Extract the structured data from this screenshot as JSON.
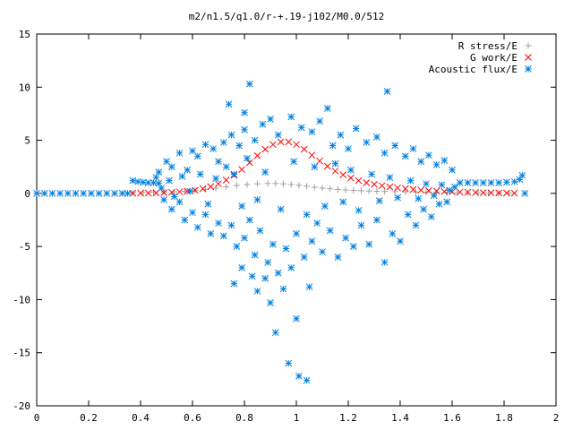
{
  "chart_data": {
    "type": "scatter",
    "title": "m2/n1.5/q1.0/r-+.19-j102/M0.0/512",
    "xlabel": "",
    "ylabel": "",
    "xlim": [
      0,
      2
    ],
    "ylim": [
      -20,
      15
    ],
    "x_ticks": [
      0,
      0.2,
      0.4,
      0.6,
      0.8,
      1,
      1.2,
      1.4,
      1.6,
      1.8,
      2
    ],
    "x_tick_labels": [
      "0",
      "0.2",
      "0.4",
      "0.6",
      "0.8",
      "1",
      "1.2",
      "1.4",
      "1.6",
      "1.8",
      "2"
    ],
    "y_ticks": [
      -20,
      -15,
      -10,
      -5,
      0,
      5,
      10,
      15
    ],
    "y_tick_labels": [
      "-20",
      "-15",
      "-10",
      "-5",
      "0",
      "5",
      "10",
      "15"
    ],
    "grid": false,
    "legend_position": "top-right",
    "series": [
      {
        "name": "R stress/E",
        "marker": "plus",
        "color": "#a0a0a0",
        "points": [
          [
            0.37,
            0.05
          ],
          [
            0.41,
            0.08
          ],
          [
            0.45,
            0.1
          ],
          [
            0.49,
            0.12
          ],
          [
            0.53,
            0.15
          ],
          [
            0.57,
            0.2
          ],
          [
            0.61,
            0.28
          ],
          [
            0.65,
            0.38
          ],
          [
            0.69,
            0.5
          ],
          [
            0.73,
            0.62
          ],
          [
            0.77,
            0.74
          ],
          [
            0.81,
            0.83
          ],
          [
            0.85,
            0.9
          ],
          [
            0.89,
            0.93
          ],
          [
            0.92,
            0.93
          ],
          [
            0.95,
            0.9
          ],
          [
            0.98,
            0.84
          ],
          [
            1.01,
            0.76
          ],
          [
            1.04,
            0.67
          ],
          [
            1.07,
            0.58
          ],
          [
            1.1,
            0.5
          ],
          [
            1.13,
            0.43
          ],
          [
            1.16,
            0.37
          ],
          [
            1.19,
            0.32
          ],
          [
            1.22,
            0.28
          ],
          [
            1.25,
            0.25
          ],
          [
            1.28,
            0.22
          ],
          [
            1.31,
            0.2
          ],
          [
            1.34,
            0.18
          ],
          [
            1.38,
            0.16
          ],
          [
            1.42,
            0.14
          ],
          [
            1.46,
            0.12
          ],
          [
            1.5,
            0.1
          ],
          [
            1.54,
            0.08
          ],
          [
            1.58,
            0.06
          ],
          [
            1.62,
            0.05
          ],
          [
            1.66,
            0.04
          ],
          [
            1.7,
            0.03
          ],
          [
            1.74,
            0.02
          ],
          [
            1.78,
            0.02
          ],
          [
            1.82,
            0.01
          ]
        ]
      },
      {
        "name": "G work/E",
        "marker": "cross",
        "color": "#ff0000",
        "points": [
          [
            0.37,
            0.02
          ],
          [
            0.4,
            0.02
          ],
          [
            0.43,
            0.03
          ],
          [
            0.46,
            0.05
          ],
          [
            0.49,
            0.07
          ],
          [
            0.52,
            0.1
          ],
          [
            0.55,
            0.14
          ],
          [
            0.58,
            0.2
          ],
          [
            0.61,
            0.3
          ],
          [
            0.64,
            0.44
          ],
          [
            0.67,
            0.63
          ],
          [
            0.7,
            0.9
          ],
          [
            0.73,
            1.25
          ],
          [
            0.76,
            1.7
          ],
          [
            0.79,
            2.25
          ],
          [
            0.82,
            2.9
          ],
          [
            0.85,
            3.55
          ],
          [
            0.88,
            4.15
          ],
          [
            0.91,
            4.6
          ],
          [
            0.94,
            4.85
          ],
          [
            0.97,
            4.85
          ],
          [
            1.0,
            4.6
          ],
          [
            1.03,
            4.15
          ],
          [
            1.06,
            3.6
          ],
          [
            1.09,
            3.05
          ],
          [
            1.12,
            2.55
          ],
          [
            1.15,
            2.1
          ],
          [
            1.18,
            1.75
          ],
          [
            1.21,
            1.45
          ],
          [
            1.24,
            1.2
          ],
          [
            1.27,
            1.0
          ],
          [
            1.3,
            0.85
          ],
          [
            1.33,
            0.72
          ],
          [
            1.36,
            0.61
          ],
          [
            1.39,
            0.52
          ],
          [
            1.42,
            0.44
          ],
          [
            1.45,
            0.37
          ],
          [
            1.48,
            0.31
          ],
          [
            1.51,
            0.26
          ],
          [
            1.54,
            0.22
          ],
          [
            1.57,
            0.18
          ],
          [
            1.6,
            0.15
          ],
          [
            1.63,
            0.12
          ],
          [
            1.66,
            0.1
          ],
          [
            1.69,
            0.08
          ],
          [
            1.72,
            0.06
          ],
          [
            1.75,
            0.05
          ],
          [
            1.78,
            0.04
          ],
          [
            1.81,
            0.03
          ],
          [
            1.84,
            0.02
          ]
        ]
      },
      {
        "name": "Acoustic flux/E",
        "marker": "star",
        "color": "#0080e0",
        "points": [
          [
            0.0,
            0.0
          ],
          [
            0.03,
            0.0
          ],
          [
            0.06,
            0.0
          ],
          [
            0.09,
            0.0
          ],
          [
            0.12,
            0.0
          ],
          [
            0.15,
            0.0
          ],
          [
            0.18,
            0.0
          ],
          [
            0.21,
            0.0
          ],
          [
            0.24,
            0.0
          ],
          [
            0.27,
            0.0
          ],
          [
            0.3,
            0.0
          ],
          [
            0.33,
            0.0
          ],
          [
            0.35,
            0.0
          ],
          [
            0.37,
            1.2
          ],
          [
            0.39,
            1.1
          ],
          [
            0.41,
            1.05
          ],
          [
            0.43,
            1.0
          ],
          [
            0.45,
            1.0
          ],
          [
            0.47,
            0.95
          ],
          [
            1.63,
            1.0
          ],
          [
            1.66,
            1.0
          ],
          [
            1.69,
            1.0
          ],
          [
            1.72,
            1.0
          ],
          [
            1.75,
            1.0
          ],
          [
            1.78,
            1.0
          ],
          [
            1.81,
            1.05
          ],
          [
            1.84,
            1.1
          ],
          [
            1.86,
            1.3
          ],
          [
            1.87,
            1.7
          ],
          [
            1.88,
            0.0
          ],
          [
            0.82,
            10.3
          ],
          [
            0.74,
            8.4
          ],
          [
            1.35,
            9.6
          ],
          [
            0.8,
            7.6
          ],
          [
            1.12,
            8.0
          ],
          [
            0.76,
            -8.5
          ],
          [
            0.79,
            -7.0
          ],
          [
            0.83,
            -7.8
          ],
          [
            0.85,
            -9.2
          ],
          [
            0.88,
            -8.0
          ],
          [
            0.92,
            -13.1
          ],
          [
            0.97,
            -16.0
          ],
          [
            1.01,
            -17.2
          ],
          [
            1.04,
            -17.6
          ],
          [
            1.0,
            -11.8
          ],
          [
            0.9,
            -10.3
          ],
          [
            0.95,
            -9.0
          ],
          [
            1.05,
            -8.8
          ],
          [
            0.47,
            2.0
          ],
          [
            0.5,
            3.0
          ],
          [
            0.52,
            2.5
          ],
          [
            0.55,
            3.8
          ],
          [
            0.58,
            2.2
          ],
          [
            0.6,
            4.0
          ],
          [
            0.62,
            3.5
          ],
          [
            0.65,
            4.6
          ],
          [
            0.68,
            4.2
          ],
          [
            0.7,
            3.0
          ],
          [
            0.72,
            4.8
          ],
          [
            0.75,
            5.5
          ],
          [
            0.78,
            4.5
          ],
          [
            0.8,
            6.0
          ],
          [
            0.84,
            5.0
          ],
          [
            0.87,
            6.5
          ],
          [
            0.9,
            7.0
          ],
          [
            0.93,
            5.5
          ],
          [
            0.98,
            7.2
          ],
          [
            1.02,
            6.2
          ],
          [
            1.06,
            5.8
          ],
          [
            1.09,
            6.8
          ],
          [
            1.14,
            4.5
          ],
          [
            1.17,
            5.5
          ],
          [
            1.2,
            4.2
          ],
          [
            1.23,
            6.1
          ],
          [
            1.27,
            4.8
          ],
          [
            1.31,
            5.3
          ],
          [
            1.34,
            3.8
          ],
          [
            1.38,
            4.5
          ],
          [
            1.42,
            3.5
          ],
          [
            1.45,
            4.2
          ],
          [
            1.48,
            3.0
          ],
          [
            1.51,
            3.6
          ],
          [
            1.54,
            2.7
          ],
          [
            1.57,
            3.1
          ],
          [
            1.6,
            2.2
          ],
          [
            0.49,
            -0.6
          ],
          [
            0.52,
            -1.5
          ],
          [
            0.55,
            -0.8
          ],
          [
            0.57,
            -2.5
          ],
          [
            0.6,
            -1.8
          ],
          [
            0.62,
            -3.2
          ],
          [
            0.65,
            -2.0
          ],
          [
            0.67,
            -3.8
          ],
          [
            0.7,
            -2.8
          ],
          [
            0.72,
            -4.0
          ],
          [
            0.75,
            -3.0
          ],
          [
            0.77,
            -5.0
          ],
          [
            0.8,
            -4.2
          ],
          [
            0.82,
            -2.5
          ],
          [
            0.84,
            -5.8
          ],
          [
            0.86,
            -3.5
          ],
          [
            0.89,
            -6.5
          ],
          [
            0.91,
            -4.8
          ],
          [
            0.93,
            -7.5
          ],
          [
            0.96,
            -5.2
          ],
          [
            0.98,
            -7.0
          ],
          [
            1.0,
            -3.8
          ],
          [
            1.03,
            -6.0
          ],
          [
            1.06,
            -4.5
          ],
          [
            1.08,
            -2.8
          ],
          [
            1.1,
            -5.5
          ],
          [
            1.13,
            -3.5
          ],
          [
            1.16,
            -6.0
          ],
          [
            1.19,
            -4.2
          ],
          [
            1.22,
            -5.0
          ],
          [
            1.25,
            -3.0
          ],
          [
            1.28,
            -4.8
          ],
          [
            1.31,
            -2.5
          ],
          [
            1.34,
            -6.5
          ],
          [
            1.37,
            -3.8
          ],
          [
            1.4,
            -4.5
          ],
          [
            1.43,
            -2.0
          ],
          [
            1.46,
            -3.0
          ],
          [
            1.49,
            -1.5
          ],
          [
            1.52,
            -2.2
          ],
          [
            1.55,
            -1.0
          ],
          [
            1.58,
            -0.8
          ],
          [
            0.46,
            1.5
          ],
          [
            0.48,
            0.5
          ],
          [
            0.51,
            1.2
          ],
          [
            0.53,
            -0.3
          ],
          [
            0.56,
            1.6
          ],
          [
            0.59,
            0.2
          ],
          [
            0.63,
            1.8
          ],
          [
            0.66,
            -1.0
          ],
          [
            0.69,
            1.4
          ],
          [
            0.73,
            2.5
          ],
          [
            0.76,
            1.8
          ],
          [
            0.79,
            -1.2
          ],
          [
            0.81,
            3.3
          ],
          [
            0.85,
            -0.6
          ],
          [
            0.88,
            2.0
          ],
          [
            0.94,
            -1.5
          ],
          [
            0.99,
            3.0
          ],
          [
            1.04,
            -2.0
          ],
          [
            1.07,
            2.5
          ],
          [
            1.11,
            -1.2
          ],
          [
            1.15,
            2.8
          ],
          [
            1.18,
            -0.8
          ],
          [
            1.21,
            2.2
          ],
          [
            1.24,
            -1.6
          ],
          [
            1.29,
            1.8
          ],
          [
            1.32,
            -0.7
          ],
          [
            1.36,
            1.5
          ],
          [
            1.39,
            -0.4
          ],
          [
            1.44,
            1.2
          ],
          [
            1.47,
            -0.5
          ],
          [
            1.5,
            0.9
          ],
          [
            1.53,
            -0.2
          ],
          [
            1.56,
            0.8
          ],
          [
            1.59,
            0.3
          ],
          [
            1.61,
            0.6
          ]
        ]
      }
    ]
  }
}
